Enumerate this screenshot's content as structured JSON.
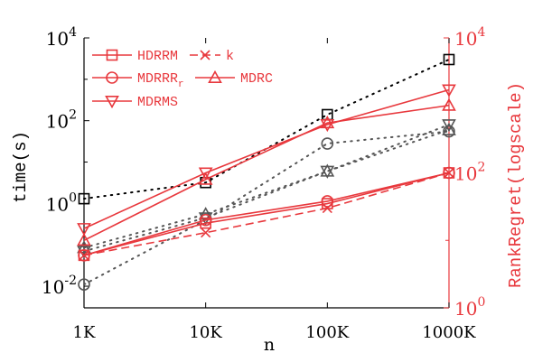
{
  "chart_data": {
    "type": "line",
    "xlabel": "n",
    "ylabel_left": "time(s)",
    "ylabel_right": "RankRegret(logscale)",
    "x_ticks": [
      "1K",
      "10K",
      "100K",
      "1000K"
    ],
    "x_values": [
      1000,
      10000,
      100000,
      1000000
    ],
    "left_axis": {
      "scale": "log",
      "ylim": [
        0.003,
        10000
      ],
      "ticks": [
        0.01,
        1,
        100,
        10000
      ],
      "tick_labels": [
        {
          "base": "10",
          "exp": "-2"
        },
        {
          "base": "10",
          "exp": "0"
        },
        {
          "base": "10",
          "exp": "2"
        },
        {
          "base": "10",
          "exp": "4"
        }
      ]
    },
    "right_axis": {
      "scale": "log",
      "ylim": [
        1,
        10000
      ],
      "ticks": [
        1,
        100,
        10000
      ],
      "tick_labels": [
        {
          "base": "10",
          "exp": "0"
        },
        {
          "base": "10",
          "exp": "2"
        },
        {
          "base": "10",
          "exp": "4"
        }
      ],
      "color": "#e8383d"
    },
    "time_series": [
      {
        "name": "HDRRM",
        "marker": "square",
        "color": "#000000",
        "values": [
          1.3,
          3.2,
          140,
          3000
        ]
      },
      {
        "name": "MDRRR_r",
        "marker": "circle",
        "color": "#555555",
        "values": [
          0.011,
          0.4,
          28,
          55
        ]
      },
      {
        "name": "MDRMS",
        "marker": "triangle-down",
        "color": "#555555",
        "values": [
          0.07,
          0.45,
          6,
          80
        ]
      },
      {
        "name": "MDRC",
        "marker": "triangle-up",
        "color": "#555555",
        "values": [
          0.085,
          0.55,
          6,
          60
        ]
      }
    ],
    "rankregret_series": [
      {
        "name": "HDRRM",
        "marker": "square",
        "color": "#e8383d",
        "values": [
          6,
          18,
          35,
          100
        ]
      },
      {
        "name": "MDRRR_r",
        "marker": "circle",
        "color": "#e8383d",
        "values": [
          6,
          20,
          38,
          100
        ]
      },
      {
        "name": "MDRMS",
        "marker": "triangle-down",
        "color": "#e8383d",
        "values": [
          15,
          100,
          520,
          1700
        ]
      },
      {
        "name": "MDRC",
        "marker": "triangle-up",
        "color": "#e8383d",
        "values": [
          10,
          80,
          550,
          1000
        ]
      },
      {
        "name": "k",
        "marker": "x",
        "color": "#e8383d",
        "values": [
          6,
          13,
          30,
          100
        ]
      }
    ],
    "legend": {
      "placement": "top-left",
      "entries": [
        {
          "label": "HDRRM",
          "marker": "square",
          "dashed": false
        },
        {
          "label": "k",
          "marker": "x",
          "dashed": true
        },
        {
          "label": "MDRRR",
          "sub": "r",
          "marker": "circle",
          "dashed": false
        },
        {
          "label": "MDRC",
          "marker": "triangle-up",
          "dashed": false
        },
        {
          "label": "MDRMS",
          "marker": "triangle-down",
          "dashed": false
        }
      ]
    },
    "grid": false
  }
}
